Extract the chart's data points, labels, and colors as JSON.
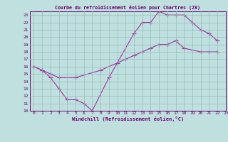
{
  "title": "Courbe du refroidissement éolien pour Chartres (28)",
  "xlabel": "Windchill (Refroidissement éolien,°C)",
  "xlim": [
    -0.5,
    23
  ],
  "ylim": [
    10,
    23.5
  ],
  "xticks": [
    0,
    1,
    2,
    3,
    4,
    5,
    6,
    7,
    8,
    9,
    10,
    11,
    12,
    13,
    14,
    15,
    16,
    17,
    18,
    19,
    20,
    21,
    22,
    23
  ],
  "yticks": [
    10,
    11,
    12,
    13,
    14,
    15,
    16,
    17,
    18,
    19,
    20,
    21,
    22,
    23
  ],
  "bg_color": "#c0e0e0",
  "line_color": "#993399",
  "grid_color": "#99bbbb",
  "line1_x": [
    0,
    1,
    2,
    3,
    4,
    5,
    6,
    7,
    9,
    12,
    13,
    14,
    15,
    16,
    17,
    18,
    19,
    20,
    21,
    22
  ],
  "line1_y": [
    16,
    15.5,
    14.5,
    13,
    11.5,
    11.5,
    11,
    10,
    14.5,
    20.5,
    22,
    22,
    23.5,
    23,
    23,
    23,
    22,
    21,
    20.5,
    19.5
  ],
  "line2_x": [
    0,
    1,
    2,
    3,
    5,
    8,
    10,
    11,
    12,
    13,
    14,
    15,
    16,
    17,
    18,
    20,
    21,
    22
  ],
  "line2_y": [
    16,
    15.5,
    15,
    14.5,
    14.5,
    15.5,
    16.5,
    17,
    17.5,
    18,
    18.5,
    19,
    19,
    19.5,
    18.5,
    18,
    18,
    18
  ],
  "font_color": "#660066",
  "marker": "+",
  "markersize": 4,
  "lw": 0.8
}
